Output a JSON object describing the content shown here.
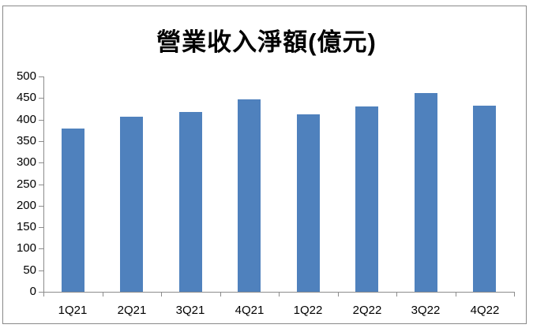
{
  "chart_data": {
    "type": "bar",
    "title": "營業收入淨額(億元)",
    "categories": [
      "1Q21",
      "2Q21",
      "3Q21",
      "4Q21",
      "1Q22",
      "2Q22",
      "3Q22",
      "4Q22"
    ],
    "values": [
      379,
      407,
      418,
      446,
      413,
      430,
      462,
      433
    ],
    "xlabel": "",
    "ylabel": "",
    "ylim": [
      0,
      500
    ],
    "ytick_step": 50,
    "grid": false,
    "legend": false,
    "bar_color": "#4F81BD",
    "axis_color": "#8C8C8C",
    "label_color": "#000000",
    "border_color": "#8A8A8A",
    "background_color": "#FFFFFF"
  }
}
